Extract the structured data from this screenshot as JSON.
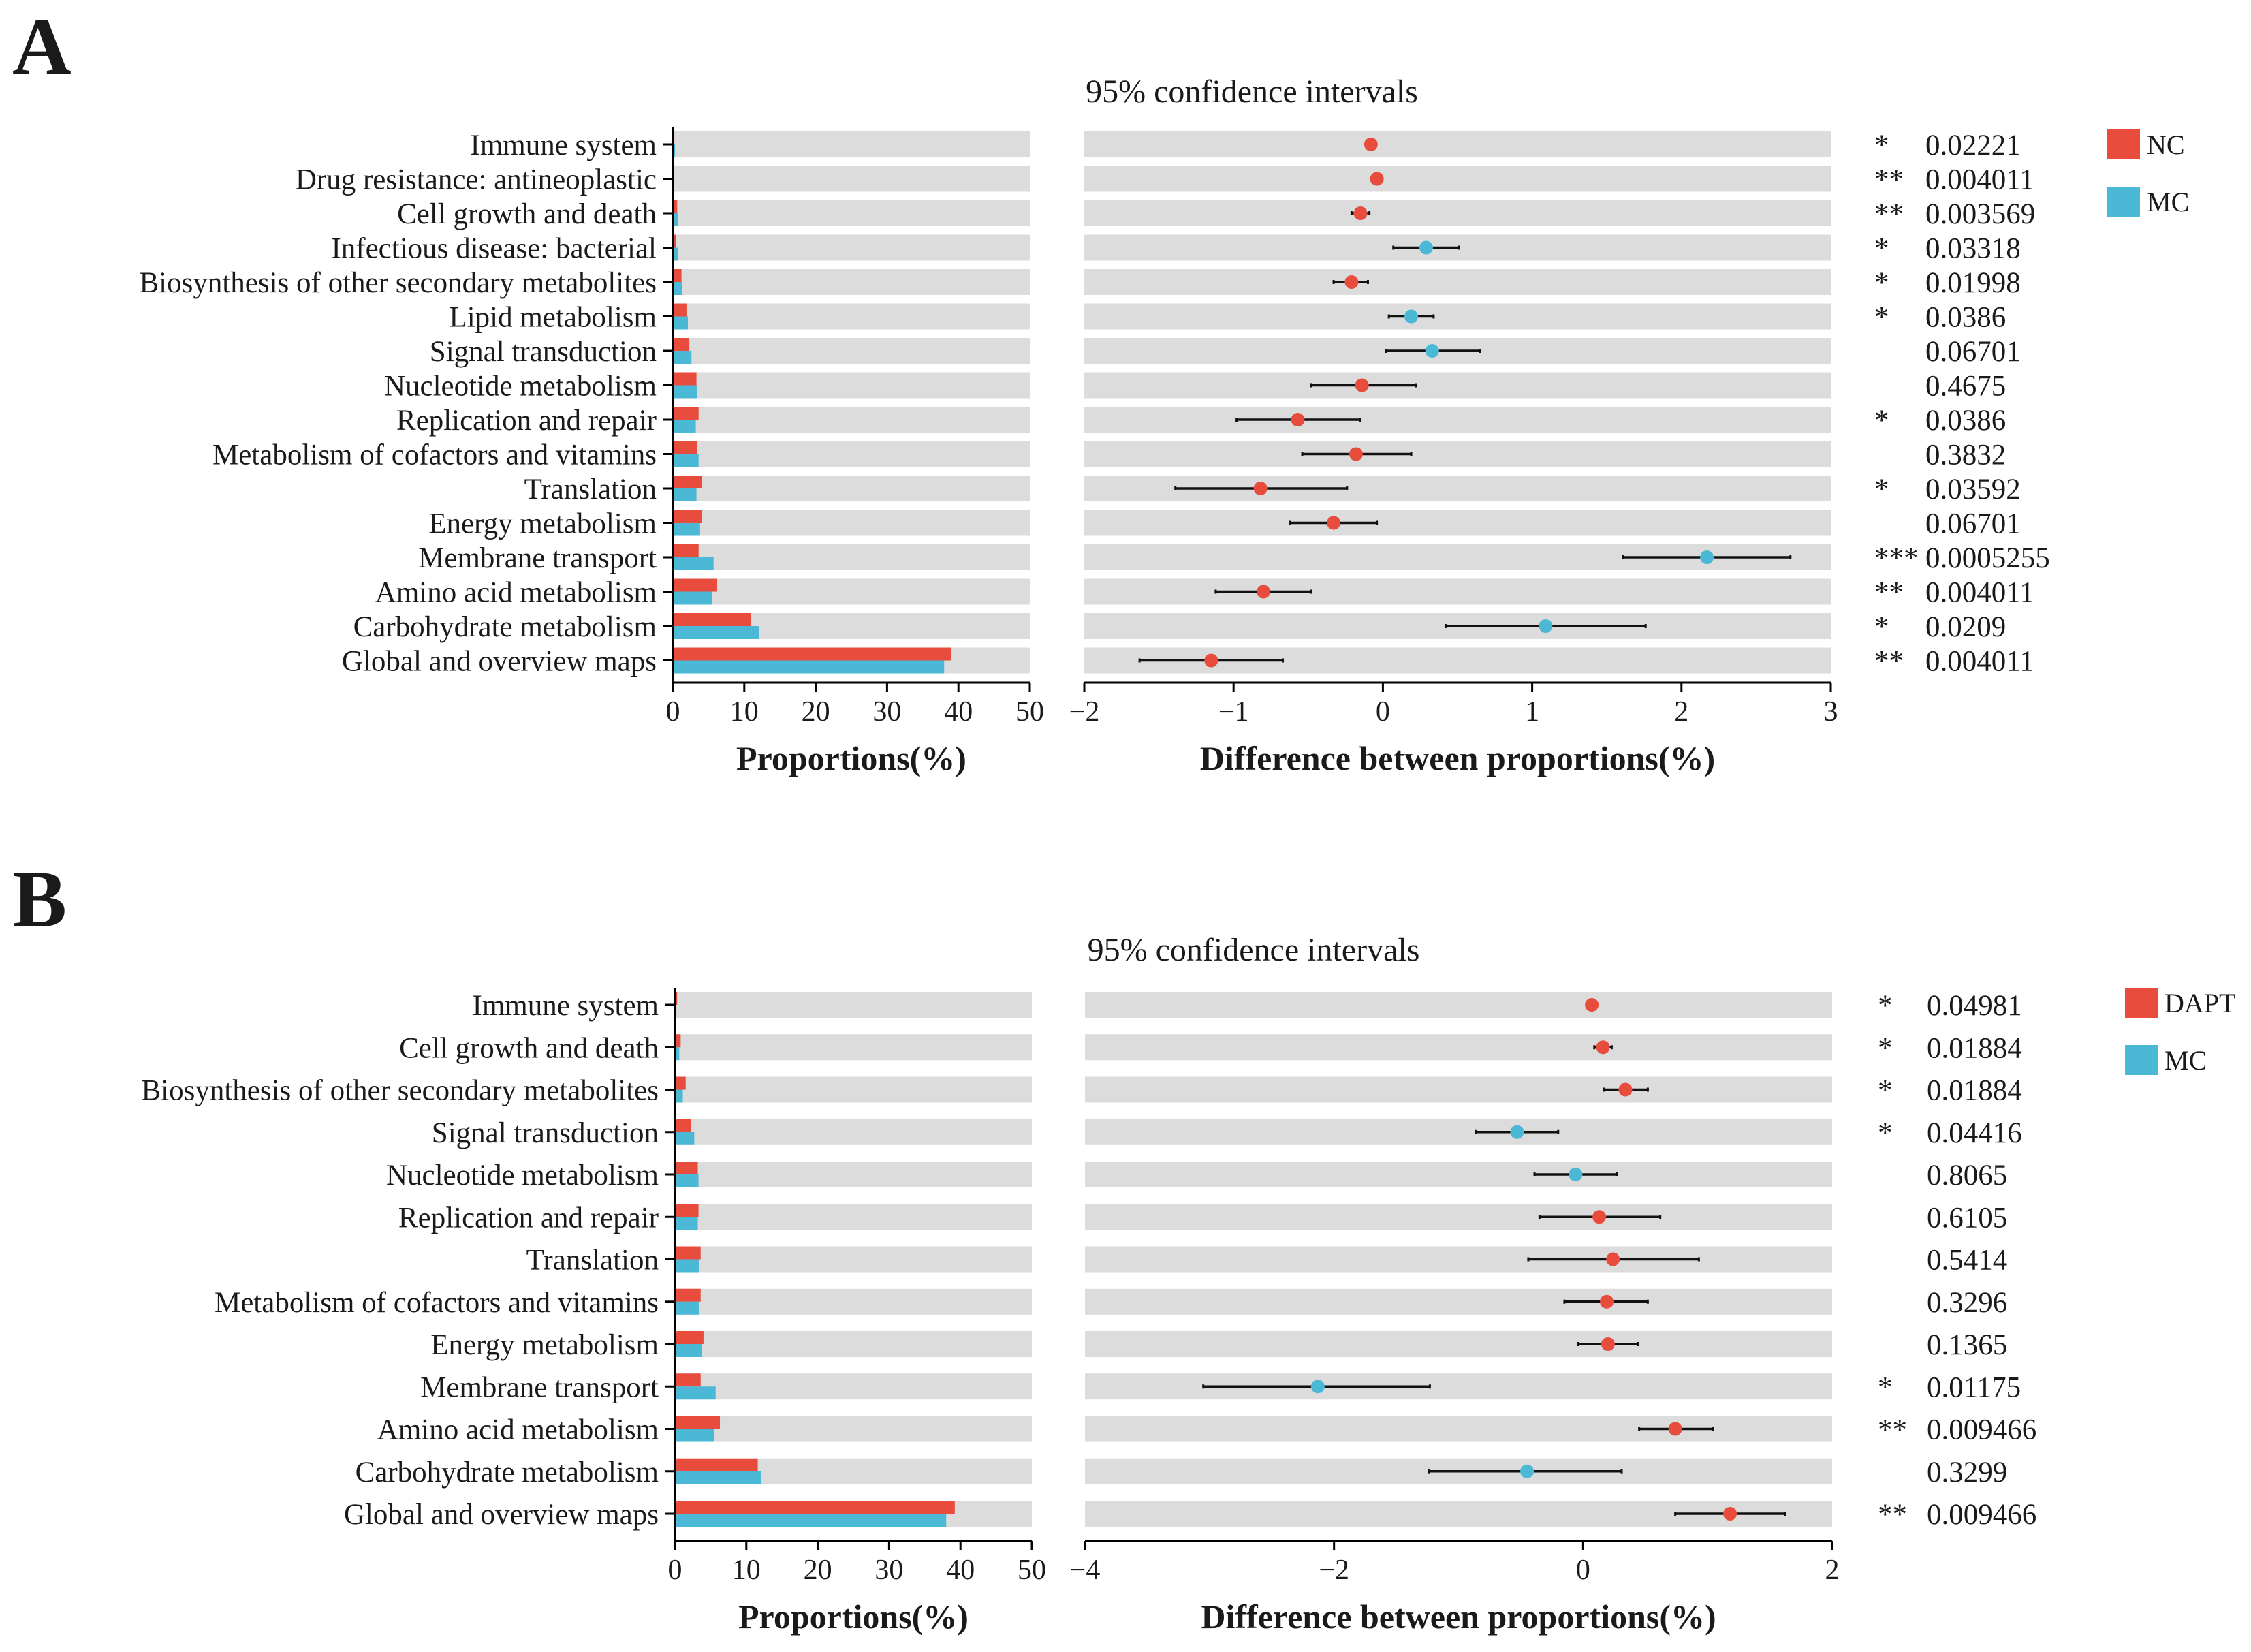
{
  "chart_data": [
    {
      "type": "extended_error_bar",
      "panel_label": "A",
      "title": "95% confidence intervals",
      "left_xlabel": "Proportions(%)",
      "right_xlabel": "Difference between proportions(%)",
      "left_xlim": [
        0,
        50
      ],
      "left_ticks": [
        0,
        10,
        20,
        30,
        40,
        50
      ],
      "right_xlim": [
        -2,
        3
      ],
      "right_ticks": [
        -2,
        -1,
        0,
        1,
        2,
        3
      ],
      "right_tick_labels": [
        "−2",
        "−1",
        "0",
        "1",
        "2",
        "3"
      ],
      "legend": [
        {
          "name": "NC",
          "color": "#E74C3C"
        },
        {
          "name": "MC",
          "color": "#4BB8D6"
        }
      ],
      "categories": [
        "Immune system",
        "Drug resistance: antineoplastic",
        "Cell growth and death",
        "Infectious disease: bacterial",
        "Biosynthesis of other secondary metabolites",
        "Lipid metabolism",
        "Signal transduction",
        "Nucleotide metabolism",
        "Replication and repair",
        "Metabolism of cofactors and vitamins",
        "Translation",
        "Energy metabolism",
        "Membrane transport",
        "Amino acid metabolism",
        "Carbohydrate metabolism",
        "Global and overview maps"
      ],
      "series": [
        {
          "name": "NC",
          "values": [
            0.2,
            0.1,
            0.6,
            0.4,
            1.2,
            1.9,
            2.3,
            3.3,
            3.6,
            3.4,
            4.1,
            4.1,
            3.6,
            6.2,
            10.9,
            39.0
          ]
        },
        {
          "name": "MC",
          "values": [
            0.3,
            0.1,
            0.7,
            0.7,
            1.3,
            2.1,
            2.6,
            3.4,
            3.2,
            3.6,
            3.3,
            3.8,
            5.7,
            5.5,
            12.1,
            38.0
          ]
        }
      ],
      "difference": [
        -0.08,
        -0.04,
        -0.15,
        0.29,
        -0.21,
        0.19,
        0.33,
        -0.14,
        -0.57,
        -0.18,
        -0.82,
        -0.33,
        2.17,
        -0.8,
        1.09,
        -1.15
      ],
      "ci_low": [
        -0.11,
        -0.06,
        -0.21,
        0.07,
        -0.33,
        0.04,
        0.02,
        -0.48,
        -0.98,
        -0.54,
        -1.39,
        -0.62,
        1.61,
        -1.12,
        0.42,
        -1.63
      ],
      "ci_high": [
        -0.05,
        -0.02,
        -0.09,
        0.51,
        -0.1,
        0.34,
        0.65,
        0.22,
        -0.15,
        0.19,
        -0.24,
        -0.04,
        2.73,
        -0.48,
        1.76,
        -0.67
      ],
      "point_group": [
        "NC",
        "NC",
        "NC",
        "MC",
        "NC",
        "MC",
        "MC",
        "NC",
        "NC",
        "NC",
        "NC",
        "NC",
        "MC",
        "NC",
        "MC",
        "NC"
      ],
      "significance": [
        "*",
        "**",
        "**",
        "*",
        "*",
        "*",
        "",
        "",
        "*",
        "",
        "*",
        "",
        "***",
        "**",
        "*",
        "**"
      ],
      "p_values": [
        "0.02221",
        "0.004011",
        "0.003569",
        "0.03318",
        "0.01998",
        "0.0386",
        "0.06701",
        "0.4675",
        "0.0386",
        "0.3832",
        "0.03592",
        "0.06701",
        "0.0005255",
        "0.004011",
        "0.0209",
        "0.004011"
      ]
    },
    {
      "type": "extended_error_bar",
      "panel_label": "B",
      "title": "95% confidence intervals",
      "left_xlabel": "Proportions(%)",
      "right_xlabel": "Difference between proportions(%)",
      "left_xlim": [
        0,
        50
      ],
      "left_ticks": [
        0,
        10,
        20,
        30,
        40,
        50
      ],
      "right_xlim": [
        -4,
        2
      ],
      "right_ticks": [
        -4,
        -2,
        0,
        2
      ],
      "right_tick_labels": [
        "−4",
        "−2",
        "0",
        "2"
      ],
      "legend": [
        {
          "name": "DAPT",
          "color": "#E74C3C"
        },
        {
          "name": "MC",
          "color": "#4BB8D6"
        }
      ],
      "categories": [
        "Immune system",
        "Cell growth and death",
        "Biosynthesis of other secondary metabolites",
        "Signal transduction",
        "Nucleotide metabolism",
        "Replication and repair",
        "Translation",
        "Metabolism of cofactors and vitamins",
        "Energy metabolism",
        "Membrane transport",
        "Amino acid metabolism",
        "Carbohydrate metabolism",
        "Global and overview maps"
      ],
      "series": [
        {
          "name": "DAPT",
          "values": [
            0.3,
            0.8,
            1.5,
            2.2,
            3.2,
            3.3,
            3.6,
            3.6,
            4.0,
            3.6,
            6.3,
            11.6,
            39.2
          ]
        },
        {
          "name": "MC",
          "values": [
            0.2,
            0.6,
            1.1,
            2.7,
            3.3,
            3.2,
            3.4,
            3.4,
            3.8,
            5.7,
            5.5,
            12.1,
            38.0
          ]
        }
      ],
      "difference": [
        0.07,
        0.16,
        0.34,
        -0.53,
        -0.06,
        0.13,
        0.24,
        0.19,
        0.2,
        -2.13,
        0.74,
        -0.45,
        1.18
      ],
      "ci_low": [
        0.03,
        0.09,
        0.17,
        -0.86,
        -0.39,
        -0.35,
        -0.44,
        -0.15,
        -0.04,
        -3.05,
        0.45,
        -1.24,
        0.74
      ],
      "ci_high": [
        0.11,
        0.23,
        0.52,
        -0.2,
        0.27,
        0.62,
        0.93,
        0.52,
        0.44,
        -1.23,
        1.04,
        0.31,
        1.62
      ],
      "point_group": [
        "DAPT",
        "DAPT",
        "DAPT",
        "MC",
        "MC",
        "DAPT",
        "DAPT",
        "DAPT",
        "DAPT",
        "MC",
        "DAPT",
        "MC",
        "DAPT"
      ],
      "significance": [
        "*",
        "*",
        "*",
        "*",
        "",
        "",
        "",
        "",
        "",
        "*",
        "**",
        "",
        "**"
      ],
      "p_values": [
        "0.04981",
        "0.01884",
        "0.01884",
        "0.04416",
        "0.8065",
        "0.6105",
        "0.5414",
        "0.3296",
        "0.1365",
        "0.01175",
        "0.009466",
        "0.3299",
        "0.009466"
      ]
    }
  ]
}
